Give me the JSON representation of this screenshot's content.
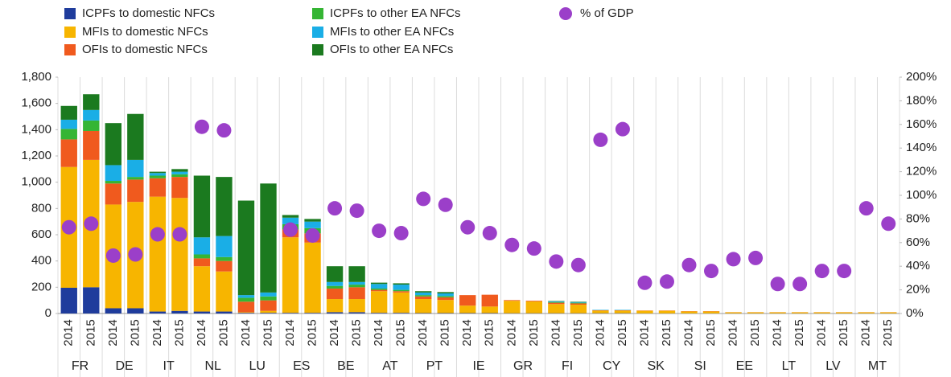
{
  "chart_data": {
    "type": "bar",
    "stacked": true,
    "categories": [
      "2014",
      "2015",
      "2014",
      "2015",
      "2014",
      "2015",
      "2014",
      "2015",
      "2014",
      "2015",
      "2014",
      "2015",
      "2014",
      "2015",
      "2014",
      "2015",
      "2014",
      "2015",
      "2014",
      "2015",
      "2014",
      "2015",
      "2014",
      "2015",
      "2014",
      "2015",
      "2014",
      "2015",
      "2014",
      "2015",
      "2014",
      "2015",
      "2014",
      "2015",
      "2014",
      "2015",
      "2014",
      "2015"
    ],
    "groups": [
      "FR",
      "DE",
      "IT",
      "NL",
      "LU",
      "ES",
      "BE",
      "AT",
      "PT",
      "IE",
      "GR",
      "FI",
      "CY",
      "SK",
      "SI",
      "EE",
      "LT",
      "LV",
      "MT"
    ],
    "series": [
      {
        "name": "ICPFs to domestic NFCs",
        "color": "#1f3c9c",
        "values": [
          196,
          200,
          40,
          40,
          15,
          20,
          15,
          15,
          5,
          5,
          5,
          5,
          10,
          10,
          5,
          5,
          3,
          3,
          3,
          3,
          2,
          2,
          2,
          2,
          2,
          2,
          1,
          1,
          1,
          1,
          1,
          1,
          1,
          1,
          1,
          1,
          1,
          1
        ]
      },
      {
        "name": "MFIs to domestic NFCs",
        "color": "#f7b500",
        "values": [
          920,
          970,
          790,
          810,
          875,
          860,
          345,
          305,
          5,
          15,
          575,
          535,
          100,
          100,
          165,
          155,
          107,
          100,
          57,
          50,
          95,
          90,
          70,
          65,
          20,
          20,
          20,
          20,
          15,
          15,
          8,
          8,
          8,
          8,
          8,
          8,
          8,
          8
        ]
      },
      {
        "name": "OFIs to domestic NFCs",
        "color": "#f05a1e",
        "values": [
          210,
          220,
          160,
          170,
          140,
          160,
          60,
          80,
          80,
          80,
          60,
          70,
          80,
          90,
          10,
          10,
          20,
          20,
          80,
          90,
          5,
          5,
          10,
          10,
          3,
          3,
          2,
          2,
          2,
          2,
          1,
          1,
          1,
          1,
          1,
          1,
          1,
          1
        ]
      },
      {
        "name": "ICPFs to other EA NFCs",
        "color": "#35b534",
        "values": [
          80,
          80,
          20,
          20,
          20,
          20,
          30,
          30,
          30,
          30,
          40,
          40,
          20,
          20,
          10,
          10,
          10,
          10,
          0,
          0,
          0,
          0,
          5,
          5,
          0,
          0,
          0,
          0,
          0,
          0,
          0,
          0,
          0,
          0,
          0,
          0,
          0,
          0
        ]
      },
      {
        "name": "MFIs to other EA NFCs",
        "color": "#1aaee6",
        "values": [
          70,
          80,
          120,
          130,
          20,
          20,
          130,
          160,
          20,
          30,
          50,
          50,
          30,
          20,
          35,
          40,
          20,
          20,
          0,
          0,
          0,
          0,
          5,
          5,
          3,
          3,
          0,
          0,
          0,
          0,
          0,
          0,
          0,
          0,
          0,
          0,
          0,
          0
        ]
      },
      {
        "name": "OFIs to other EA NFCs",
        "color": "#1b7a1f",
        "values": [
          105,
          120,
          320,
          350,
          10,
          20,
          470,
          450,
          720,
          830,
          20,
          20,
          120,
          120,
          10,
          10,
          10,
          10,
          0,
          0,
          0,
          0,
          3,
          3,
          0,
          0,
          0,
          0,
          0,
          0,
          0,
          0,
          0,
          0,
          0,
          0,
          0,
          0
        ]
      },
      {
        "name": "% of GDP",
        "type": "scatter",
        "axis": "y2",
        "color": "#9b3fc9",
        "values": [
          73,
          76,
          49,
          50,
          67,
          67,
          158,
          155,
          null,
          null,
          71,
          66,
          89,
          87,
          70,
          68,
          97,
          92,
          73,
          68,
          58,
          55,
          44,
          41,
          147,
          156,
          26,
          27,
          41,
          36,
          46,
          47,
          25,
          25,
          36,
          36,
          89,
          76
        ]
      }
    ],
    "ylim": [
      0,
      1800
    ],
    "yticks": [
      0,
      200,
      400,
      600,
      800,
      {
        "value": 1000,
        "label": "1,000"
      },
      {
        "value": 1200,
        "label": "1,200"
      },
      {
        "value": 1400,
        "label": "1,400"
      },
      {
        "value": 1600,
        "label": "1,600"
      },
      {
        "value": 1800,
        "label": "1,800"
      }
    ],
    "y2lim": [
      0,
      200
    ],
    "y2ticks": [
      {
        "value": 0,
        "label": "0%"
      },
      {
        "value": 20,
        "label": "20%"
      },
      {
        "value": 40,
        "label": "40%"
      },
      {
        "value": 60,
        "label": "60%"
      },
      {
        "value": 80,
        "label": "80%"
      },
      {
        "value": 100,
        "label": "100%"
      },
      {
        "value": 120,
        "label": "120%"
      },
      {
        "value": 140,
        "label": "140%"
      },
      {
        "value": 160,
        "label": "160%"
      },
      {
        "value": 180,
        "label": "180%"
      },
      {
        "value": 200,
        "label": "200%"
      }
    ]
  }
}
